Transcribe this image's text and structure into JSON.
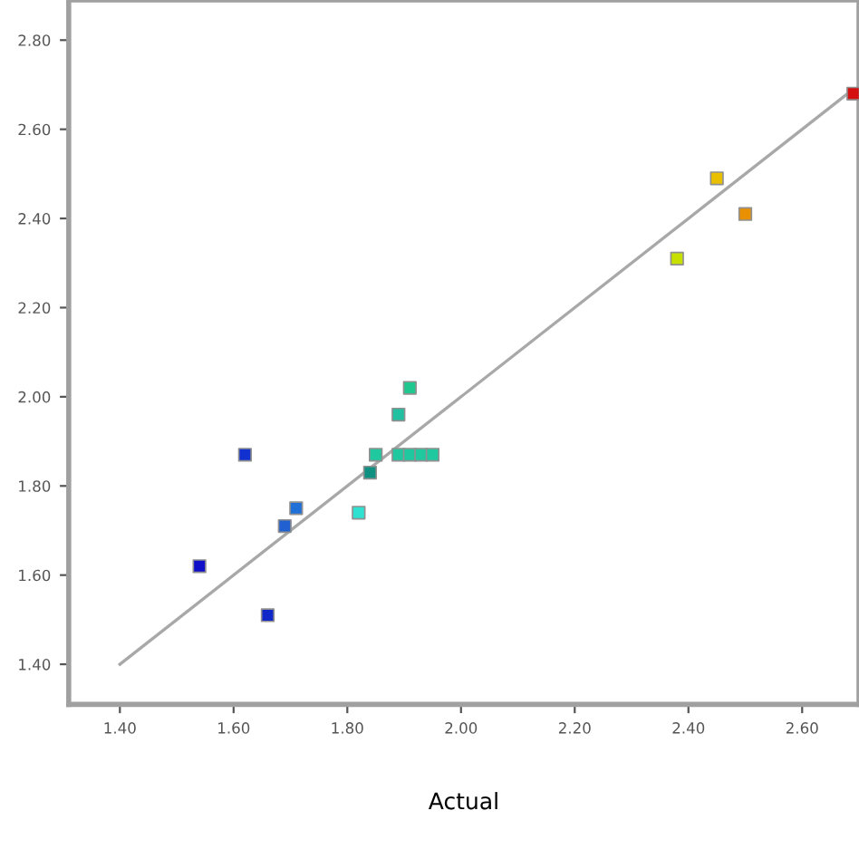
{
  "chart_data": {
    "type": "scatter",
    "xlabel": "Actual",
    "marker": "square",
    "grid": false,
    "xlim": [
      1.31,
      2.7
    ],
    "ylim": [
      1.31,
      2.89
    ],
    "xticks": [
      {
        "value": 1.4,
        "label": "1.40"
      },
      {
        "value": 1.6,
        "label": "1.60"
      },
      {
        "value": 1.8,
        "label": "1.80"
      },
      {
        "value": 2.0,
        "label": "2.00"
      },
      {
        "value": 2.2,
        "label": "2.20"
      },
      {
        "value": 2.4,
        "label": "2.40"
      },
      {
        "value": 2.6,
        "label": "2.60"
      }
    ],
    "yticks": [
      {
        "value": 1.4,
        "label": "1.40"
      },
      {
        "value": 1.6,
        "label": "1.60"
      },
      {
        "value": 1.8,
        "label": "1.80"
      },
      {
        "value": 2.0,
        "label": "2.00"
      },
      {
        "value": 2.2,
        "label": "2.20"
      },
      {
        "value": 2.4,
        "label": "2.40"
      },
      {
        "value": 2.6,
        "label": "2.60"
      },
      {
        "value": 2.8,
        "label": "2.80"
      }
    ],
    "series": [
      {
        "type": "line",
        "marker": "none",
        "color": "#a8a8a8",
        "x": [
          1.4,
          2.69
        ],
        "values": [
          1.4,
          2.69
        ]
      },
      {
        "x": [
          2.69,
          2.45,
          2.5,
          2.38,
          1.91,
          1.89,
          1.85,
          1.89,
          1.91,
          1.93,
          1.95,
          1.84,
          1.82,
          1.62,
          1.71,
          1.69,
          1.54,
          1.66
        ],
        "values": [
          2.68,
          2.49,
          2.41,
          2.31,
          2.02,
          1.96,
          1.87,
          1.87,
          1.87,
          1.87,
          1.87,
          1.83,
          1.74,
          1.87,
          1.75,
          1.71,
          1.62,
          1.51
        ],
        "colors": [
          "#d41010",
          "#e8c000",
          "#e89000",
          "#c8e000",
          "#20c890",
          "#20c0a0",
          "#20c8a0",
          "#20c8a0",
          "#20c8a0",
          "#20c8a0",
          "#20c8a0",
          "#109080",
          "#30e0d0",
          "#1030d0",
          "#2070d8",
          "#2060d0",
          "#1010c8",
          "#1028c8"
        ]
      }
    ]
  }
}
